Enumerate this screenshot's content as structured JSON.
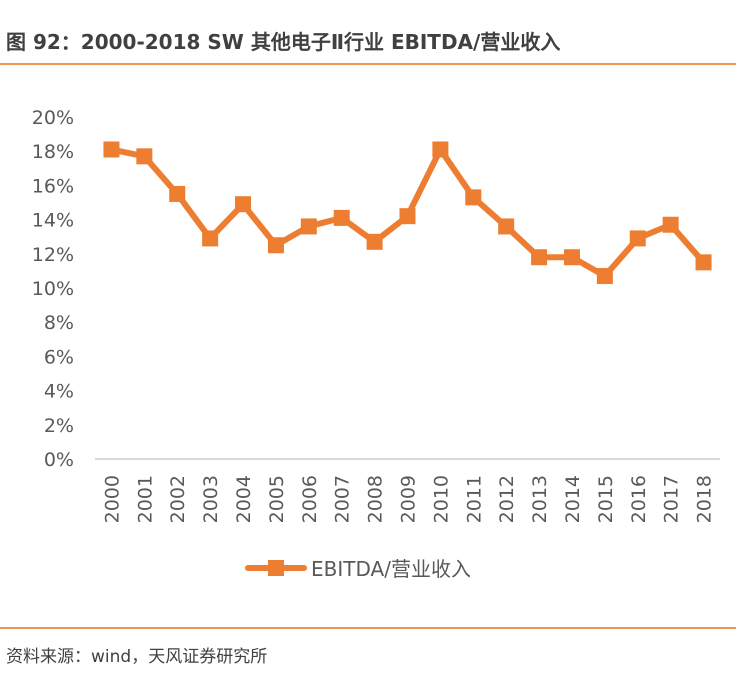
{
  "header": {
    "title": "图 92：2000-2018 SW 其他电子Ⅱ行业 EBITDA/营业收入"
  },
  "footer": {
    "source": "资料来源：wind，天风证券研究所"
  },
  "colors": {
    "series": "#ed7d31",
    "rule": "#f0964a",
    "axis": "#d9d9d9",
    "text": "#595959"
  },
  "chart_data": {
    "type": "line",
    "title": "2000-2018 SW 其他电子Ⅱ行业 EBITDA/营业收入",
    "xlabel": "",
    "ylabel": "",
    "categories": [
      "2000",
      "2001",
      "2002",
      "2003",
      "2004",
      "2005",
      "2006",
      "2007",
      "2008",
      "2009",
      "2010",
      "2011",
      "2012",
      "2013",
      "2014",
      "2015",
      "2016",
      "2017",
      "2018"
    ],
    "series": [
      {
        "name": "EBITDA/营业收入",
        "values": [
          18.1,
          17.7,
          15.5,
          12.9,
          14.9,
          12.5,
          13.6,
          14.1,
          12.7,
          14.2,
          18.1,
          15.3,
          13.6,
          11.8,
          11.8,
          10.7,
          12.9,
          13.7,
          11.5
        ],
        "marker": "square"
      }
    ],
    "ylim": [
      0,
      20
    ],
    "yticks": [
      0,
      2,
      4,
      6,
      8,
      10,
      12,
      14,
      16,
      18,
      20
    ],
    "ytick_labels": [
      "0%",
      "2%",
      "4%",
      "6%",
      "8%",
      "10%",
      "12%",
      "14%",
      "16%",
      "18%",
      "20%"
    ],
    "grid": false,
    "legend": {
      "position": "bottom",
      "entries": [
        "EBITDA/营业收入"
      ]
    }
  }
}
